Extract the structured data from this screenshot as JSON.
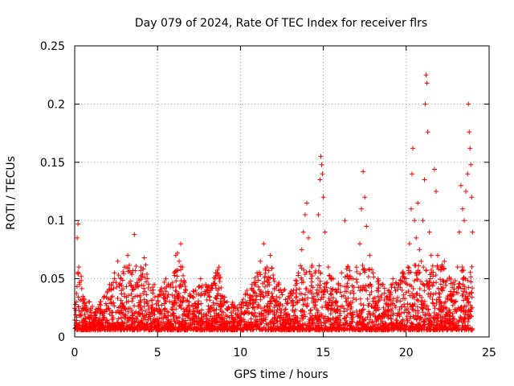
{
  "chart_data": {
    "type": "scatter",
    "title": "Day 079 of 2024, Rate Of TEC Index for receiver flrs",
    "xlabel": "GPS time / hours",
    "ylabel": "ROTI / TECUs",
    "xlim": [
      0,
      25
    ],
    "ylim": [
      0,
      0.25
    ],
    "x_ticks": [
      0,
      5,
      10,
      15,
      20,
      25
    ],
    "x_tick_labels": [
      "0",
      "5",
      "10",
      "15",
      "20",
      "25"
    ],
    "y_ticks": [
      0,
      0.05,
      0.1,
      0.15,
      0.2,
      0.25
    ],
    "y_tick_labels": [
      "0",
      "0.05",
      "0.1",
      "0.15",
      "0.2",
      "0.25"
    ],
    "grid": true,
    "marker": "+",
    "color": "#ff0000",
    "series": [
      {
        "name": "ROTI",
        "points": [
          [
            0.1,
            0.03
          ],
          [
            0.15,
            0.085
          ],
          [
            0.2,
            0.097
          ],
          [
            0.25,
            0.06
          ],
          [
            0.3,
            0.045
          ],
          [
            0.4,
            0.052
          ],
          [
            0.5,
            0.035
          ],
          [
            0.7,
            0.025
          ],
          [
            0.9,
            0.03
          ],
          [
            1.2,
            0.02
          ],
          [
            1.5,
            0.028
          ],
          [
            1.8,
            0.035
          ],
          [
            2.1,
            0.045
          ],
          [
            2.4,
            0.055
          ],
          [
            2.6,
            0.065
          ],
          [
            2.8,
            0.05
          ],
          [
            3.0,
            0.06
          ],
          [
            3.2,
            0.07
          ],
          [
            3.4,
            0.055
          ],
          [
            3.6,
            0.088
          ],
          [
            3.8,
            0.045
          ],
          [
            4.0,
            0.06
          ],
          [
            4.2,
            0.068
          ],
          [
            4.4,
            0.05
          ],
          [
            4.6,
            0.04
          ],
          [
            4.8,
            0.045
          ],
          [
            5.0,
            0.035
          ],
          [
            5.2,
            0.04
          ],
          [
            5.5,
            0.05
          ],
          [
            5.8,
            0.045
          ],
          [
            6.0,
            0.055
          ],
          [
            6.1,
            0.07
          ],
          [
            6.2,
            0.072
          ],
          [
            6.3,
            0.065
          ],
          [
            6.4,
            0.08
          ],
          [
            6.5,
            0.06
          ],
          [
            6.7,
            0.04
          ],
          [
            7.0,
            0.035
          ],
          [
            7.3,
            0.04
          ],
          [
            7.6,
            0.05
          ],
          [
            7.9,
            0.045
          ],
          [
            8.2,
            0.04
          ],
          [
            8.5,
            0.055
          ],
          [
            8.7,
            0.06
          ],
          [
            8.9,
            0.035
          ],
          [
            9.2,
            0.03
          ],
          [
            9.5,
            0.028
          ],
          [
            9.8,
            0.025
          ],
          [
            10.1,
            0.03
          ],
          [
            10.4,
            0.04
          ],
          [
            10.7,
            0.045
          ],
          [
            11.0,
            0.055
          ],
          [
            11.2,
            0.065
          ],
          [
            11.4,
            0.08
          ],
          [
            11.6,
            0.06
          ],
          [
            11.8,
            0.07
          ],
          [
            12.0,
            0.05
          ],
          [
            12.3,
            0.045
          ],
          [
            12.6,
            0.04
          ],
          [
            12.9,
            0.035
          ],
          [
            13.2,
            0.04
          ],
          [
            13.5,
            0.055
          ],
          [
            13.7,
            0.075
          ],
          [
            13.8,
            0.09
          ],
          [
            13.9,
            0.105
          ],
          [
            14.0,
            0.115
          ],
          [
            14.1,
            0.085
          ],
          [
            14.3,
            0.06
          ],
          [
            14.5,
            0.055
          ],
          [
            14.7,
            0.105
          ],
          [
            14.8,
            0.135
          ],
          [
            14.85,
            0.155
          ],
          [
            14.9,
            0.148
          ],
          [
            14.95,
            0.14
          ],
          [
            15.0,
            0.12
          ],
          [
            15.1,
            0.09
          ],
          [
            15.3,
            0.06
          ],
          [
            15.6,
            0.05
          ],
          [
            15.9,
            0.045
          ],
          [
            16.1,
            0.055
          ],
          [
            16.3,
            0.1
          ],
          [
            16.5,
            0.06
          ],
          [
            16.8,
            0.05
          ],
          [
            17.0,
            0.06
          ],
          [
            17.2,
            0.08
          ],
          [
            17.3,
            0.11
          ],
          [
            17.4,
            0.142
          ],
          [
            17.5,
            0.12
          ],
          [
            17.6,
            0.095
          ],
          [
            17.8,
            0.07
          ],
          [
            18.0,
            0.055
          ],
          [
            18.3,
            0.05
          ],
          [
            18.6,
            0.045
          ],
          [
            18.9,
            0.04
          ],
          [
            19.2,
            0.05
          ],
          [
            19.5,
            0.045
          ],
          [
            19.8,
            0.055
          ],
          [
            20.0,
            0.05
          ],
          [
            20.2,
            0.08
          ],
          [
            20.3,
            0.11
          ],
          [
            20.35,
            0.14
          ],
          [
            20.4,
            0.162
          ],
          [
            20.5,
            0.1
          ],
          [
            20.6,
            0.085
          ],
          [
            20.7,
            0.115
          ],
          [
            20.8,
            0.075
          ],
          [
            20.9,
            0.065
          ],
          [
            21.0,
            0.1
          ],
          [
            21.1,
            0.135
          ],
          [
            21.15,
            0.2
          ],
          [
            21.2,
            0.225
          ],
          [
            21.25,
            0.218
          ],
          [
            21.3,
            0.176
          ],
          [
            21.4,
            0.09
          ],
          [
            21.5,
            0.07
          ],
          [
            21.7,
            0.144
          ],
          [
            21.8,
            0.125
          ],
          [
            21.9,
            0.07
          ],
          [
            22.1,
            0.06
          ],
          [
            22.3,
            0.065
          ],
          [
            22.6,
            0.05
          ],
          [
            22.9,
            0.045
          ],
          [
            23.1,
            0.06
          ],
          [
            23.2,
            0.09
          ],
          [
            23.3,
            0.13
          ],
          [
            23.4,
            0.11
          ],
          [
            23.5,
            0.1
          ],
          [
            23.6,
            0.125
          ],
          [
            23.7,
            0.14
          ],
          [
            23.75,
            0.2
          ],
          [
            23.8,
            0.176
          ],
          [
            23.85,
            0.162
          ],
          [
            23.9,
            0.148
          ],
          [
            23.95,
            0.12
          ],
          [
            24.0,
            0.09
          ]
        ]
      }
    ]
  }
}
